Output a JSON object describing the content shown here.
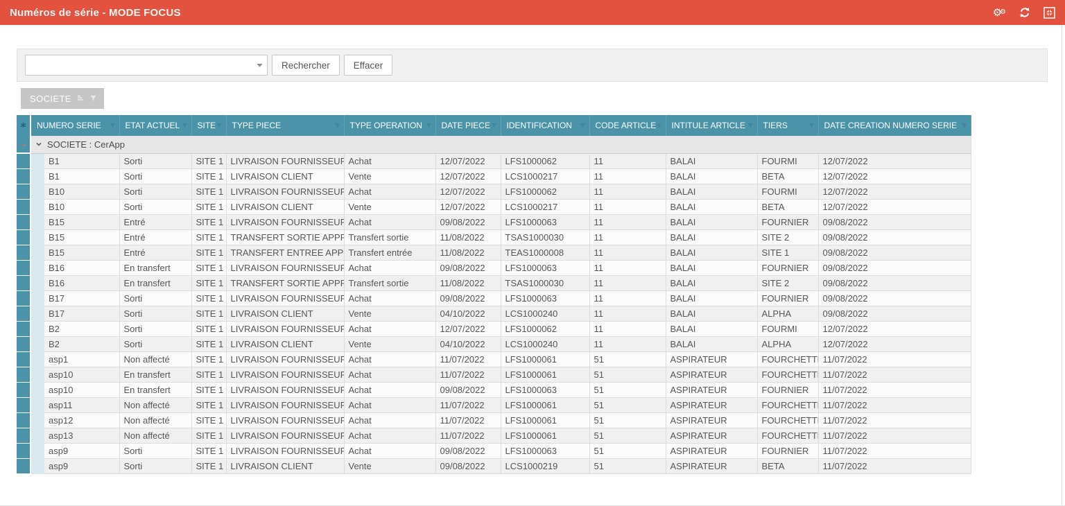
{
  "window": {
    "title": "Numéros de série - MODE FOCUS"
  },
  "icons": {
    "gears": "⚙",
    "combo_dropdown": "▾",
    "group_expand": "⌄",
    "focus_arrow": "→"
  },
  "colors": {
    "titlebar_bg": "#e2523e",
    "grid_header_bg": "#4b93a9",
    "group_indent_bg": "#d8e9f1",
    "shaded_row_bg": "#f0f0f0",
    "focus_arrow": "#ff6a50"
  },
  "search": {
    "combo_value": "",
    "combo_placeholder": "",
    "search_button": "Rechercher",
    "clear_button": "Effacer"
  },
  "group_panel": {
    "field_button": "SOCIETE"
  },
  "table": {
    "group_row_label": "SOCIETE : CerApp",
    "columns": [
      "NUMERO SERIE",
      "ETAT ACTUEL",
      "SITE",
      "TYPE PIECE",
      "TYPE OPERATION",
      "DATE PIECE",
      "IDENTIFICATION",
      "CODE ARTICLE",
      "INTITULE ARTICLE",
      "TIERS",
      "DATE CREATION NUMERO SERIE"
    ],
    "rows": [
      [
        "B1",
        "Sorti",
        "SITE 1",
        "LIVRAISON FOURNISSEUR",
        "Achat",
        "12/07/2022",
        "LFS1000062",
        "11",
        "BALAI",
        "FOURMI",
        "12/07/2022"
      ],
      [
        "B1",
        "Sorti",
        "SITE 1",
        "LIVRAISON CLIENT",
        "Vente",
        "12/07/2022",
        "LCS1000217",
        "11",
        "BALAI",
        "BETA",
        "12/07/2022"
      ],
      [
        "B10",
        "Sorti",
        "SITE 1",
        "LIVRAISON FOURNISSEUR",
        "Achat",
        "12/07/2022",
        "LFS1000062",
        "11",
        "BALAI",
        "FOURMI",
        "12/07/2022"
      ],
      [
        "B10",
        "Sorti",
        "SITE 1",
        "LIVRAISON CLIENT",
        "Vente",
        "12/07/2022",
        "LCS1000217",
        "11",
        "BALAI",
        "BETA",
        "12/07/2022"
      ],
      [
        "B15",
        "Entré",
        "SITE 1",
        "LIVRAISON FOURNISSEUR",
        "Achat",
        "09/08/2022",
        "LFS1000063",
        "11",
        "BALAI",
        "FOURNIER",
        "09/08/2022"
      ],
      [
        "B15",
        "Entré",
        "SITE 1",
        "TRANSFERT SORTIE APPRO",
        "Transfert sortie",
        "11/08/2022",
        "TSAS1000030",
        "11",
        "BALAI",
        "SITE 2",
        "09/08/2022"
      ],
      [
        "B15",
        "Entré",
        "SITE 1",
        "TRANSFERT ENTREE APPRO",
        "Transfert entrée",
        "11/08/2022",
        "TEAS1000008",
        "11",
        "BALAI",
        "SITE 1",
        "09/08/2022"
      ],
      [
        "B16",
        "En transfert",
        "SITE 1",
        "LIVRAISON FOURNISSEUR",
        "Achat",
        "09/08/2022",
        "LFS1000063",
        "11",
        "BALAI",
        "FOURNIER",
        "09/08/2022"
      ],
      [
        "B16",
        "En transfert",
        "SITE 1",
        "TRANSFERT SORTIE APPRO",
        "Transfert sortie",
        "11/08/2022",
        "TSAS1000030",
        "11",
        "BALAI",
        "SITE 2",
        "09/08/2022"
      ],
      [
        "B17",
        "Sorti",
        "SITE 1",
        "LIVRAISON FOURNISSEUR",
        "Achat",
        "09/08/2022",
        "LFS1000063",
        "11",
        "BALAI",
        "FOURNIER",
        "09/08/2022"
      ],
      [
        "B17",
        "Sorti",
        "SITE 1",
        "LIVRAISON CLIENT",
        "Vente",
        "04/10/2022",
        "LCS1000240",
        "11",
        "BALAI",
        "ALPHA",
        "09/08/2022"
      ],
      [
        "B2",
        "Sorti",
        "SITE 1",
        "LIVRAISON FOURNISSEUR",
        "Achat",
        "12/07/2022",
        "LFS1000062",
        "11",
        "BALAI",
        "FOURMI",
        "12/07/2022"
      ],
      [
        "B2",
        "Sorti",
        "SITE 1",
        "LIVRAISON CLIENT",
        "Vente",
        "04/10/2022",
        "LCS1000240",
        "11",
        "BALAI",
        "ALPHA",
        "12/07/2022"
      ],
      [
        "asp1",
        "Non affecté",
        "SITE 1",
        "LIVRAISON FOURNISSEUR",
        "Achat",
        "11/07/2022",
        "LFS1000061",
        "51",
        "ASPIRATEUR",
        "FOURCHETTE",
        "11/07/2022"
      ],
      [
        "asp10",
        "En transfert",
        "SITE 1",
        "LIVRAISON FOURNISSEUR",
        "Achat",
        "11/07/2022",
        "LFS1000061",
        "51",
        "ASPIRATEUR",
        "FOURCHETTE",
        "11/07/2022"
      ],
      [
        "asp10",
        "En transfert",
        "SITE 1",
        "LIVRAISON FOURNISSEUR",
        "Achat",
        "09/08/2022",
        "LFS1000063",
        "51",
        "ASPIRATEUR",
        "FOURNIER",
        "11/07/2022"
      ],
      [
        "asp11",
        "Non affecté",
        "SITE 1",
        "LIVRAISON FOURNISSEUR",
        "Achat",
        "11/07/2022",
        "LFS1000061",
        "51",
        "ASPIRATEUR",
        "FOURCHETTE",
        "11/07/2022"
      ],
      [
        "asp12",
        "Non affecté",
        "SITE 1",
        "LIVRAISON FOURNISSEUR",
        "Achat",
        "11/07/2022",
        "LFS1000061",
        "51",
        "ASPIRATEUR",
        "FOURCHETTE",
        "11/07/2022"
      ],
      [
        "asp13",
        "Non affecté",
        "SITE 1",
        "LIVRAISON FOURNISSEUR",
        "Achat",
        "11/07/2022",
        "LFS1000061",
        "51",
        "ASPIRATEUR",
        "FOURCHETTE",
        "11/07/2022"
      ],
      [
        "asp9",
        "Sorti",
        "SITE 1",
        "LIVRAISON FOURNISSEUR",
        "Achat",
        "09/08/2022",
        "LFS1000063",
        "51",
        "ASPIRATEUR",
        "FOURNIER",
        "11/07/2022"
      ],
      [
        "asp9",
        "Sorti",
        "SITE 1",
        "LIVRAISON CLIENT",
        "Vente",
        "09/08/2022",
        "LCS1000219",
        "51",
        "ASPIRATEUR",
        "BETA",
        "11/07/2022"
      ]
    ]
  }
}
